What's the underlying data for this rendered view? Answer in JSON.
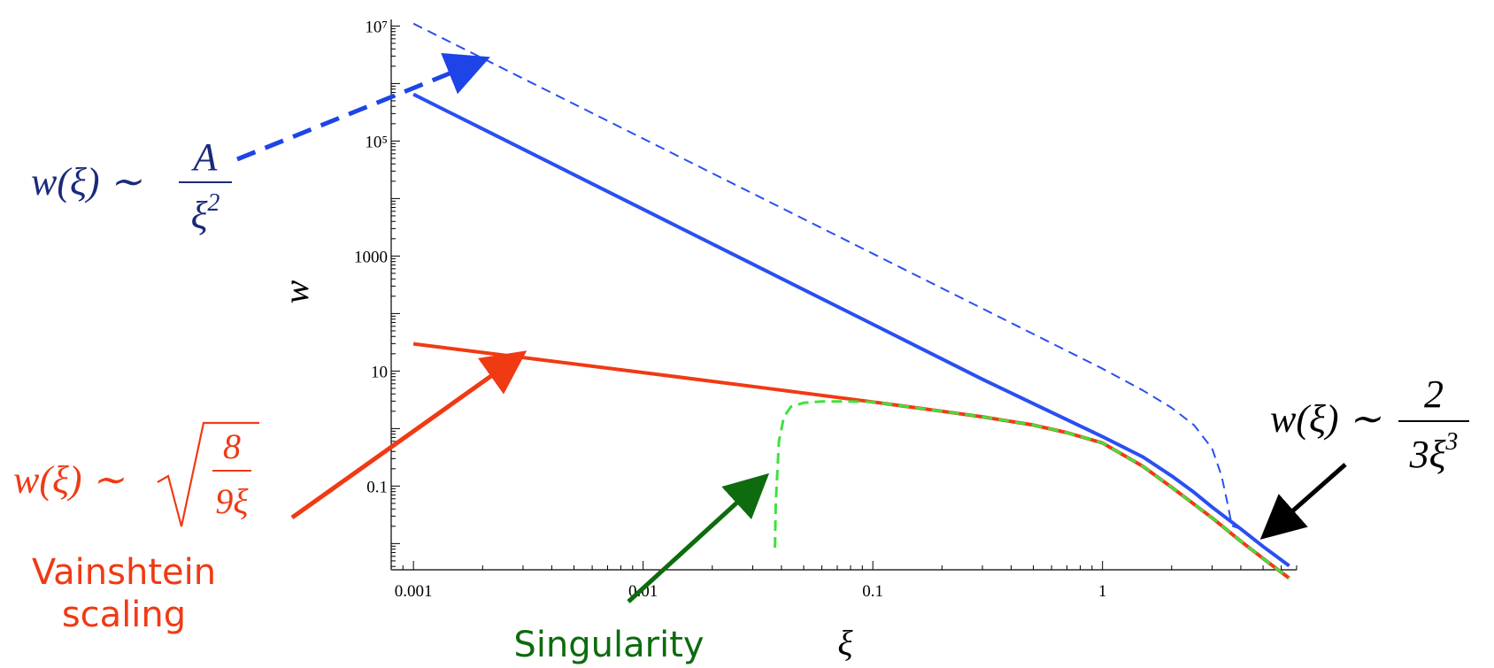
{
  "chart_data": {
    "type": "line",
    "xlabel": "ξ",
    "ylabel": "w",
    "xscale": "log",
    "yscale": "log",
    "xlim": [
      0.0008,
      7.0
    ],
    "ylim": [
      0.0035,
      13000000
    ],
    "x_ticks": [
      {
        "value": 0.001,
        "label": "0.001"
      },
      {
        "value": 0.01,
        "label": "0.01"
      },
      {
        "value": 0.1,
        "label": "0.1"
      },
      {
        "value": 1,
        "label": "1"
      }
    ],
    "y_ticks": [
      {
        "value": 0.1,
        "label": "0.1"
      },
      {
        "value": 10,
        "label": "10"
      },
      {
        "value": 1000,
        "label": "1000"
      },
      {
        "value": 100000,
        "label": "10⁵"
      },
      {
        "value": 10000000,
        "label": "10⁷"
      }
    ],
    "series": [
      {
        "color": "#2a4ff0",
        "style": "solid",
        "width": 4,
        "x": [
          0.001,
          0.002,
          0.005,
          0.01,
          0.03,
          0.1,
          0.3,
          1.0,
          1.5,
          2.0,
          2.5,
          3.0,
          4.0,
          5.0,
          6.5
        ],
        "y": [
          650000,
          162500,
          26000,
          6500,
          722,
          65,
          7.2,
          0.72,
          0.32,
          0.15,
          0.078,
          0.043,
          0.018,
          0.0089,
          0.0041
        ]
      },
      {
        "color": "#2a4ff0",
        "style": "dashed",
        "width": 2,
        "x": [
          0.001,
          0.01,
          0.1,
          1.0,
          1.5,
          2.0,
          2.5,
          3.0,
          3.3,
          3.5,
          3.6,
          3.7,
          4.0,
          5.0,
          6.5
        ],
        "y": [
          11000000,
          110000,
          1100,
          11,
          4.6,
          2.3,
          1.15,
          0.45,
          0.15,
          0.05,
          0.028,
          0.02,
          0.018,
          0.0089,
          0.0041
        ]
      },
      {
        "color": "#f03a14",
        "style": "solid",
        "width": 4,
        "x": [
          0.001,
          0.003,
          0.01,
          0.03,
          0.1,
          0.2,
          0.3,
          0.5,
          0.7,
          1.0,
          1.5,
          2.0,
          3.0,
          4.0,
          5.0,
          6.5
        ],
        "y": [
          29.8,
          17.2,
          9.4,
          5.4,
          2.9,
          2.0,
          1.6,
          1.15,
          0.85,
          0.56,
          0.22,
          0.095,
          0.028,
          0.011,
          0.0055,
          0.0025
        ]
      },
      {
        "color": "#3ee23e",
        "style": "dashed",
        "width": 3,
        "x": [
          0.0375,
          0.0378,
          0.039,
          0.041,
          0.044,
          0.05,
          0.06,
          0.08,
          0.1,
          0.2,
          0.3,
          0.5,
          0.7,
          1.0,
          1.5,
          2.0,
          3.0,
          4.0,
          5.0,
          6.5
        ],
        "y": [
          0.0085,
          0.05,
          0.6,
          1.6,
          2.4,
          2.8,
          2.95,
          2.95,
          2.9,
          2.0,
          1.6,
          1.15,
          0.85,
          0.56,
          0.22,
          0.095,
          0.028,
          0.011,
          0.0055,
          0.0025
        ]
      }
    ]
  },
  "annotations": {
    "blue_formula": "w(ξ) ∼ A/ξ²",
    "black_formula": "w(ξ) ∼ 2/(3ξ³)",
    "red_formula": "w(ξ) ∼ √(8/(9ξ))",
    "vainshtein_line1": "Vainshtein",
    "vainshtein_line2": "scaling",
    "singularity": "Singularity"
  }
}
